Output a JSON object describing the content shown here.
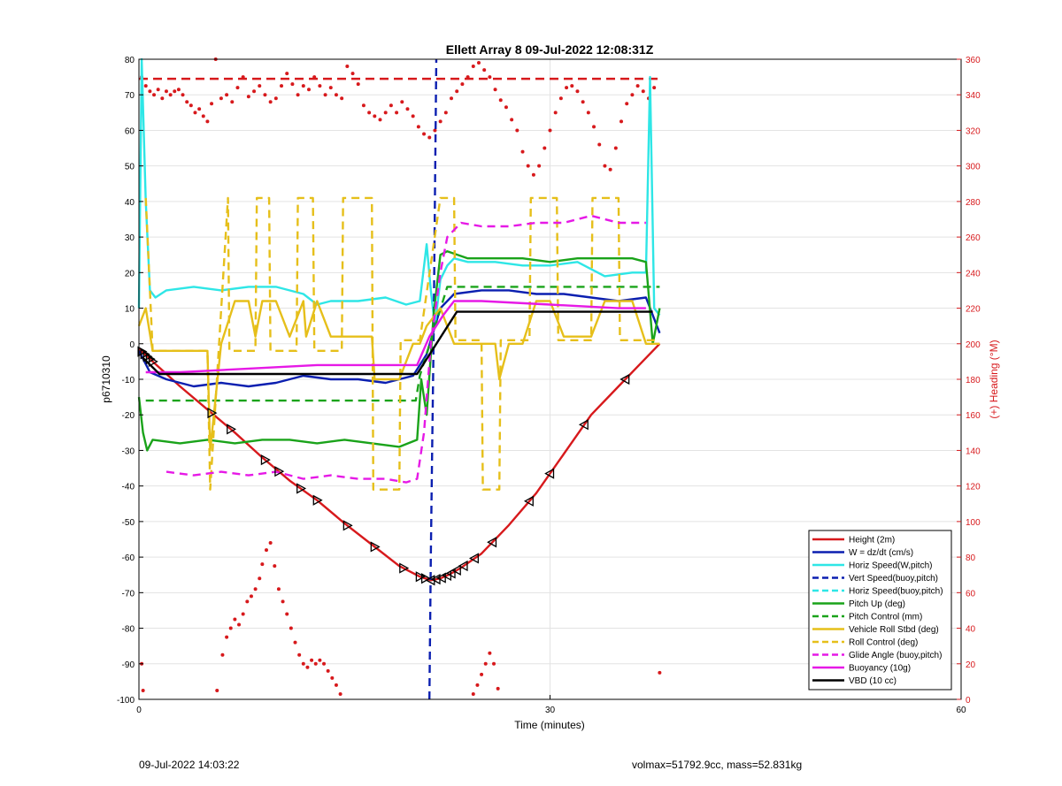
{
  "footer": {
    "timestamp": "09-Jul-2022 14:03:22",
    "stats": "volmax=51792.9cc, mass=52.831kg"
  },
  "chart_data": {
    "type": "line",
    "title": "Ellett Array 8 09-Jul-2022 12:08:31Z",
    "xlabel": "Time (minutes)",
    "ylabel": "p6710310",
    "ylabel_right": "(+) Heading (°M)",
    "xlim": [
      0,
      60
    ],
    "ylim": [
      -100,
      80
    ],
    "ylim_right": [
      0,
      360
    ],
    "x_ticks": [
      0,
      30,
      60
    ],
    "y_ticks": [
      80,
      70,
      60,
      50,
      40,
      30,
      20,
      10,
      0,
      -10,
      -20,
      -30,
      -40,
      -50,
      -60,
      -70,
      -80,
      -90,
      -100
    ],
    "y_ticks_right": [
      360,
      340,
      320,
      300,
      280,
      260,
      240,
      220,
      200,
      180,
      160,
      140,
      120,
      100,
      80,
      60,
      40,
      20,
      0
    ],
    "grid": true,
    "legend_position": "bottom-right",
    "colors": {
      "red": "#d7191c",
      "blue": "#0b1fb0",
      "cyan": "#2ee6e6",
      "green": "#1aa31a",
      "yellow": "#e6bf1a",
      "magenta": "#e619e6",
      "black": "#000000",
      "right_axis": "#d7191c"
    },
    "series": [
      {
        "name": "Height (2m)",
        "color": "#d7191c",
        "dash": "solid",
        "x": [
          0,
          1,
          3,
          5,
          7,
          9,
          11,
          13,
          15,
          17,
          19,
          20.5,
          21.3,
          22,
          22.6,
          23.5,
          25,
          27,
          29,
          31,
          33,
          35,
          36.5,
          38
        ],
        "y": [
          -1.5,
          -5,
          -12,
          -18.5,
          -25,
          -32,
          -38.5,
          -44,
          -50.5,
          -56.5,
          -62.5,
          -65.5,
          -66.5,
          -66,
          -65,
          -63,
          -59,
          -51,
          -42,
          -31,
          -20,
          -12,
          -6,
          0
        ],
        "markers": [
          0.2,
          0.4,
          0.6,
          0.8,
          1.0,
          5.3,
          6.7,
          9.2,
          10.2,
          11.8,
          13,
          15.2,
          17.2,
          19.3,
          20.5,
          20.9,
          21.3,
          21.7,
          22.1,
          22.5,
          22.8,
          23.2,
          23.7,
          24.5,
          25.8,
          28.5,
          30.0,
          32.5,
          35.5
        ]
      },
      {
        "name": "W = dz/dt (cm/s)",
        "color": "#0b1fb0",
        "dash": "solid",
        "x": [
          0,
          0.8,
          2,
          4,
          6,
          8,
          10,
          12,
          14,
          16,
          18,
          20,
          21,
          22,
          23,
          25,
          27,
          29,
          31,
          33,
          35,
          37,
          38
        ],
        "y": [
          -2,
          -8,
          -10,
          -12,
          -11,
          -12,
          -11,
          -9,
          -10,
          -10,
          -11,
          -9,
          -3,
          10,
          14,
          15,
          15,
          14,
          14,
          13,
          12,
          13,
          3
        ]
      },
      {
        "name": "Horiz Speed(W,pitch)",
        "color": "#2ee6e6",
        "dash": "solid",
        "x": [
          0,
          0.2,
          0.5,
          0.8,
          1.2,
          2,
          4,
          6,
          8,
          10,
          12,
          13,
          14,
          16,
          18,
          19.5,
          20.5,
          21,
          21.3,
          21.6,
          22,
          22.5,
          23,
          24,
          26,
          28,
          30,
          32,
          34,
          36,
          37,
          37.3,
          37.6,
          38
        ],
        "y": [
          10,
          80,
          40,
          15,
          13,
          15,
          16,
          15,
          16,
          16,
          14,
          11,
          12,
          12,
          13,
          11,
          12,
          28,
          15,
          5,
          18,
          22,
          24,
          23,
          23,
          22,
          22,
          23,
          19,
          20,
          20,
          75,
          10,
          8
        ]
      },
      {
        "name": "Vert Speed(buoy,pitch)",
        "color": "#0b1fb0",
        "dash": "dash",
        "x": [
          21.2,
          21.3,
          21.4,
          21.5,
          21.6,
          21.7
        ],
        "y": [
          -100,
          -60,
          -30,
          0,
          40,
          80
        ]
      },
      {
        "name": "Horiz Speed(buoy,pitch)",
        "color": "#2ee6e6",
        "dash": "dash",
        "x": [],
        "y": []
      },
      {
        "name": "Pitch Up (deg)",
        "color": "#1aa31a",
        "dash": "solid",
        "x": [
          0,
          0.3,
          0.6,
          1,
          3,
          5,
          7,
          9,
          11,
          13,
          15,
          17,
          19,
          20.3,
          20.6,
          21,
          21.5,
          22,
          22.5,
          24,
          26,
          28,
          30,
          32,
          34,
          36,
          37,
          37.5,
          38
        ],
        "y": [
          -15,
          -25,
          -30,
          -27,
          -28,
          -27,
          -28,
          -27,
          -27,
          -28,
          -27,
          -28,
          -29,
          -27,
          -10,
          -20,
          8,
          25,
          26,
          24,
          24,
          24,
          23,
          24,
          24,
          24,
          23,
          0,
          10
        ]
      },
      {
        "name": "Pitch Control (mm)",
        "color": "#1aa31a",
        "dash": "dash",
        "x": [
          0.5,
          20.2,
          20.5,
          22.5,
          38
        ],
        "y": [
          -16,
          -16,
          -9,
          16,
          16
        ]
      },
      {
        "name": "Vehicle Roll Stbd (deg)",
        "color": "#e6bf1a",
        "dash": "solid",
        "x": [
          0,
          0.5,
          1,
          5,
          5.2,
          6,
          7,
          8,
          8.5,
          9,
          10,
          11,
          12,
          12.2,
          13,
          14,
          15,
          17,
          17.2,
          19,
          20,
          20.5,
          21,
          22,
          23,
          24,
          25,
          26,
          26.3,
          27,
          28,
          29,
          30,
          31,
          33,
          34,
          36,
          37,
          38
        ],
        "y": [
          5,
          10,
          -2,
          -2,
          -30,
          0,
          12,
          12,
          2,
          12,
          12,
          2,
          12,
          2,
          12,
          2,
          2,
          2,
          -10,
          -10,
          0,
          0,
          5,
          10,
          0,
          0,
          0,
          0,
          -10,
          0,
          0,
          12,
          12,
          2,
          2,
          12,
          12,
          0,
          0
        ]
      },
      {
        "name": "Roll Control (deg)",
        "color": "#e6bf1a",
        "dash": "dash",
        "x": [
          0.5,
          1,
          5,
          5.2,
          6.5,
          6.6,
          8.5,
          8.6,
          9.5,
          9.6,
          11.5,
          11.6,
          12.7,
          12.8,
          14.8,
          14.9,
          17,
          17.1,
          19,
          19.1,
          20.5,
          22,
          23,
          23.1,
          25,
          25.1,
          26.3,
          26.4,
          28.5,
          28.6,
          30.5,
          30.6,
          33,
          33.1,
          35,
          35.1,
          38
        ],
        "y": [
          41,
          -2,
          -2,
          -41,
          41,
          -2,
          -2,
          41,
          41,
          -2,
          -2,
          41,
          41,
          -2,
          -2,
          41,
          41,
          -41,
          -41,
          1,
          1,
          41,
          41,
          1,
          1,
          -41,
          -41,
          1,
          1,
          41,
          41,
          1,
          1,
          41,
          41,
          1,
          1
        ]
      },
      {
        "name": "Glide Angle (buoy,pitch)",
        "color": "#e619e6",
        "dash": "dash",
        "x": [
          2,
          4,
          6,
          8,
          10,
          12,
          14,
          16,
          18,
          19.5,
          20.3,
          20.8,
          21.3,
          22,
          22.5,
          23.5,
          25,
          27,
          29,
          31,
          33,
          35,
          37
        ],
        "y": [
          -36,
          -37,
          -36,
          -37,
          -36,
          -38,
          -37,
          -38,
          -38,
          -39,
          -38,
          -25,
          0,
          20,
          30,
          34,
          33,
          33,
          34,
          34,
          36,
          34,
          34
        ]
      },
      {
        "name": "Buoyancy (10g)",
        "color": "#e619e6",
        "dash": "solid",
        "x": [
          0.5,
          3,
          8,
          13,
          18,
          20.3,
          21.2,
          22.2,
          23,
          25,
          30,
          35,
          37
        ],
        "y": [
          -8,
          -8,
          -7,
          -6,
          -6,
          -6,
          2,
          8,
          12,
          12,
          11,
          10,
          10
        ]
      },
      {
        "name": "VBD (10 cc)",
        "color": "#000000",
        "dash": "solid",
        "x": [
          0.3,
          1.5,
          20.3,
          23.2,
          37.5
        ],
        "y": [
          -4,
          -8.5,
          -8.5,
          9,
          9
        ]
      }
    ],
    "heading_series": {
      "name": "Heading",
      "color": "#d7191c",
      "points_x": [
        0.2,
        0.5,
        0.8,
        1.1,
        1.4,
        1.7,
        2.0,
        2.3,
        2.6,
        2.9,
        3.2,
        3.5,
        3.8,
        4.1,
        4.4,
        4.7,
        5.0,
        5.3,
        5.6,
        6.0,
        6.4,
        6.8,
        7.2,
        7.6,
        8.0,
        8.4,
        8.8,
        9.2,
        9.6,
        10.0,
        10.4,
        10.8,
        11.2,
        11.6,
        12.0,
        12.4,
        12.8,
        13.2,
        13.6,
        14.0,
        14.4,
        14.8,
        15.2,
        15.6,
        16.0,
        16.4,
        16.8,
        17.2,
        17.6,
        18.0,
        18.4,
        18.8,
        19.2,
        19.6,
        20.0,
        20.4,
        20.8,
        21.2,
        21.6,
        22.0,
        22.4,
        22.8,
        23.2,
        23.6,
        24.0,
        24.4,
        24.8,
        25.2,
        25.6,
        26.0,
        26.4,
        26.8,
        27.2,
        27.6,
        28.0,
        28.4,
        28.8,
        29.2,
        29.6,
        30.0,
        30.4,
        30.8,
        31.2,
        31.6,
        32.0,
        32.4,
        32.8,
        33.2,
        33.6,
        34.0,
        34.4,
        34.8,
        35.2,
        35.6,
        36.0,
        36.4,
        36.8,
        37.2,
        37.6
      ],
      "points_y": [
        350,
        345,
        342,
        340,
        343,
        338,
        342,
        340,
        342,
        343,
        340,
        336,
        334,
        330,
        332,
        328,
        325,
        335,
        360,
        338,
        340,
        336,
        344,
        350,
        339,
        342,
        345,
        340,
        336,
        338,
        345,
        352,
        346,
        340,
        345,
        343,
        350,
        345,
        340,
        344,
        340,
        338,
        356,
        352,
        346,
        334,
        330,
        328,
        326,
        330,
        334,
        330,
        336,
        332,
        328,
        322,
        318,
        316,
        320,
        325,
        330,
        338,
        342,
        346,
        350,
        356,
        358,
        354,
        350,
        343,
        337,
        333,
        326,
        320,
        308,
        300,
        295,
        300,
        310,
        320,
        330,
        338,
        344,
        345,
        342,
        336,
        330,
        322,
        312,
        300,
        298,
        310,
        325,
        335,
        340,
        345,
        342,
        338,
        344
      ],
      "low_points_x": [
        0.2,
        0.3,
        5.7,
        6.1,
        6.4,
        6.7,
        7.0,
        7.3,
        7.6,
        7.9,
        8.2,
        8.5,
        8.8,
        9.0,
        9.3,
        9.6,
        9.9,
        10.2,
        10.5,
        10.8,
        11.1,
        11.4,
        11.7,
        12.0,
        12.3,
        12.6,
        12.9,
        13.2,
        13.5,
        13.8,
        14.1,
        14.4,
        14.7,
        24.4,
        24.7,
        25.0,
        25.3,
        25.6,
        25.9,
        26.2,
        38.0
      ],
      "low_points_y": [
        20,
        5,
        5,
        25,
        35,
        40,
        45,
        42,
        48,
        55,
        58,
        62,
        68,
        76,
        84,
        88,
        75,
        62,
        55,
        48,
        40,
        32,
        25,
        20,
        18,
        22,
        20,
        22,
        20,
        16,
        12,
        8,
        3,
        3,
        8,
        14,
        20,
        26,
        20,
        6,
        15
      ]
    }
  }
}
